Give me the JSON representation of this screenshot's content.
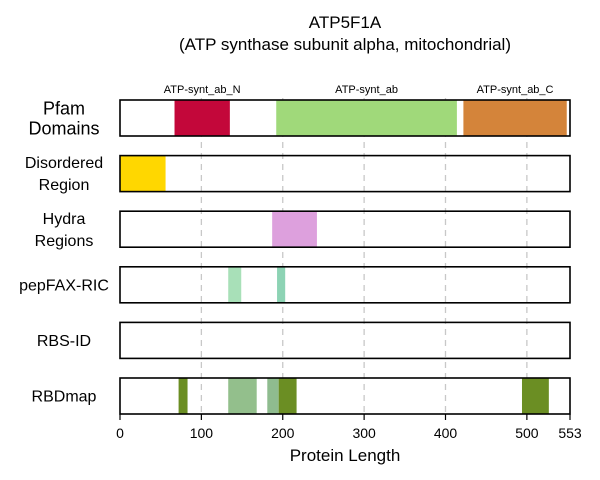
{
  "chart_data": {
    "type": "track",
    "title_line1": "ATP5F1A",
    "title_line2": "(ATP synthase subunit alpha, mitochondrial)",
    "xlabel": "Protein Length",
    "xlim": [
      0,
      553
    ],
    "xticks": [
      0,
      100,
      200,
      300,
      400,
      500,
      553
    ],
    "gridlines": [
      100,
      200,
      300,
      400,
      500
    ],
    "tracks": [
      {
        "label_lines": [
          "Pfam",
          "Domains"
        ],
        "segments": [
          {
            "start": 67,
            "end": 135,
            "color": "#c3073a",
            "label": "ATP-synt_ab_N"
          },
          {
            "start": 192,
            "end": 414,
            "color": "#a0d97a",
            "label": "ATP-synt_ab"
          },
          {
            "start": 422,
            "end": 549,
            "color": "#d4843a",
            "label": "ATP-synt_ab_C"
          }
        ]
      },
      {
        "label_lines": [
          "Disordered",
          "Region"
        ],
        "segments": [
          {
            "start": 0,
            "end": 56,
            "color": "#ffd700"
          }
        ]
      },
      {
        "label_lines": [
          "Hydra",
          "Regions"
        ],
        "segments": [
          {
            "start": 187,
            "end": 242,
            "color": "#dda0dd"
          }
        ]
      },
      {
        "label_lines": [
          "pepFAX-RIC"
        ],
        "segments": [
          {
            "start": 133,
            "end": 149,
            "color": "#a8e0b8"
          },
          {
            "start": 193,
            "end": 203,
            "color": "#8dd3b4"
          }
        ]
      },
      {
        "label_lines": [
          "RBS-ID"
        ],
        "segments": []
      },
      {
        "label_lines": [
          "RBDmap"
        ],
        "segments": [
          {
            "start": 72,
            "end": 83,
            "color": "#6b8e23"
          },
          {
            "start": 133,
            "end": 168,
            "color": "#93bf8c"
          },
          {
            "start": 181,
            "end": 195,
            "color": "#8fbc8f"
          },
          {
            "start": 195,
            "end": 217,
            "color": "#6b8e23"
          },
          {
            "start": 494,
            "end": 527,
            "color": "#6b8e23"
          }
        ]
      }
    ]
  }
}
